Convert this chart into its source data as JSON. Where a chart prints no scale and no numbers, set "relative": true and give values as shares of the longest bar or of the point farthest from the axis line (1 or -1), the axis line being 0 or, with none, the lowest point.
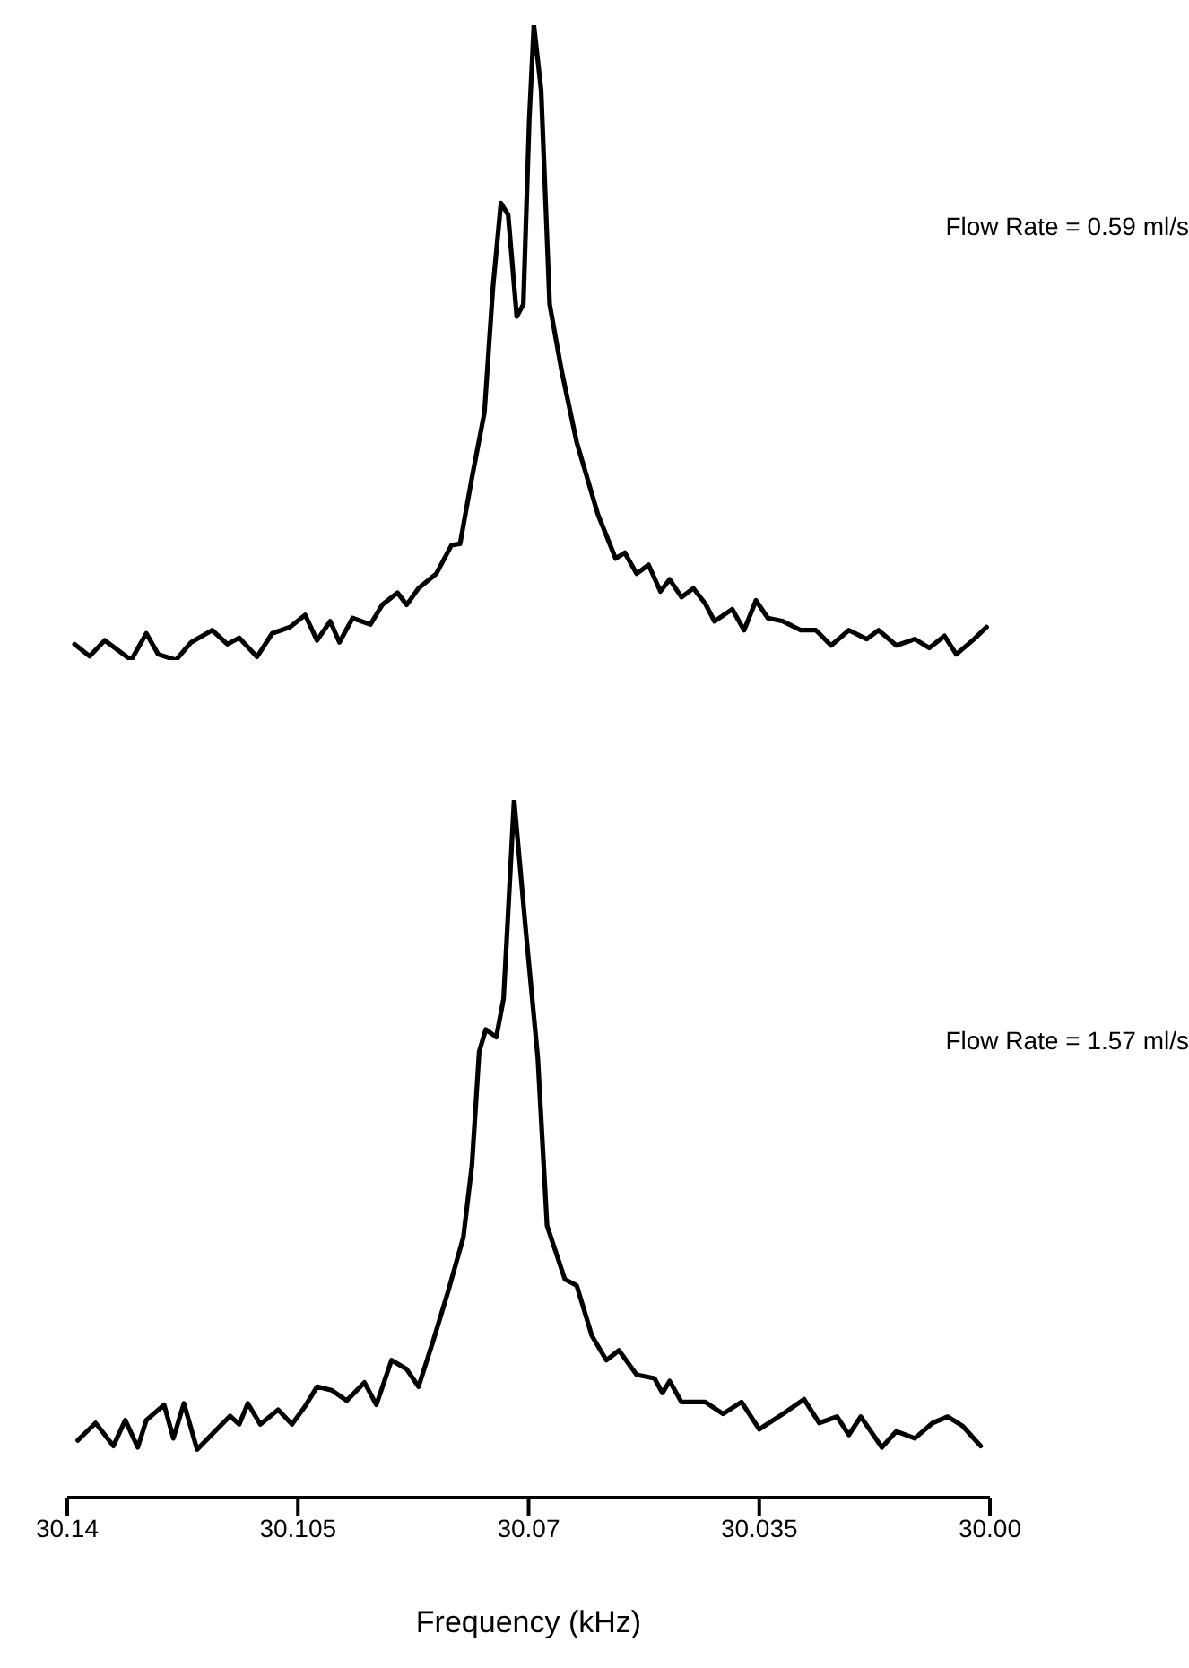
{
  "chart_data": [
    {
      "type": "line",
      "relative": true,
      "marker": "none",
      "xlim": [
        30.14,
        30.0
      ],
      "tick_labels": false,
      "annotations": [
        "Flow Rate = 0.59 ml/s"
      ],
      "series": [
        {
          "color": "#000000",
          "x": [
            30.1389,
            30.1366,
            30.1343,
            30.1303,
            30.128,
            30.1262,
            30.1235,
            30.1212,
            30.118,
            30.1157,
            30.1139,
            30.1112,
            30.1089,
            30.1062,
            30.1039,
            30.1021,
            30.1001,
            30.0987,
            30.0967,
            30.094,
            30.0922,
            30.0899,
            30.0885,
            30.0867,
            30.084,
            30.0817,
            30.0804,
            30.0786,
            30.0767,
            30.0754,
            30.0742,
            30.0731,
            30.0718,
            30.0708,
            30.0699,
            30.0692,
            30.0681,
            30.0668,
            30.065,
            30.0627,
            30.0595,
            30.0568,
            30.0554,
            30.0536,
            30.0518,
            30.05,
            30.0486,
            30.0468,
            30.045,
            30.0432,
            30.0418,
            30.0391,
            30.0373,
            30.0355,
            30.0337,
            30.0314,
            30.0287,
            30.0264,
            30.0241,
            30.0214,
            30.0187,
            30.0169,
            30.0142,
            30.0114,
            30.0092,
            30.0069,
            30.0051,
            30.0024,
            30.0005
          ],
          "values": [
            0.025,
            0.006,
            0.031,
            0,
            0.042,
            0.009,
            0,
            0.028,
            0.047,
            0.025,
            0.035,
            0.005,
            0.042,
            0.052,
            0.071,
            0.031,
            0.061,
            0.028,
            0.066,
            0.056,
            0.087,
            0.106,
            0.087,
            0.113,
            0.136,
            0.181,
            0.183,
            0.287,
            0.39,
            0.588,
            0.72,
            0.701,
            0.541,
            0.56,
            0.851,
            1,
            0.898,
            0.56,
            0.456,
            0.343,
            0.23,
            0.16,
            0.169,
            0.136,
            0.15,
            0.108,
            0.127,
            0.099,
            0.113,
            0.089,
            0.061,
            0.08,
            0.047,
            0.094,
            0.066,
            0.061,
            0.047,
            0.047,
            0.023,
            0.047,
            0.033,
            0.047,
            0.023,
            0.033,
            0.019,
            0.038,
            0.009,
            0.033,
            0.052
          ]
        }
      ]
    },
    {
      "type": "line",
      "relative": true,
      "marker": "none",
      "xlim": [
        30.14,
        30.0
      ],
      "xticks": [
        30.14,
        30.105,
        30.07,
        30.035,
        {
          "value": 30.0,
          "label": "30.00"
        }
      ],
      "tick_labels": "x",
      "xlabel": "Frequency (kHz)",
      "annotations": [
        "Flow Rate = 1.57 ml/s"
      ],
      "series": [
        {
          "color": "#000000",
          "x": [
            30.1384,
            30.1357,
            30.133,
            30.1312,
            30.1293,
            30.128,
            30.1253,
            30.1239,
            30.1223,
            30.1203,
            30.1176,
            30.1153,
            30.1139,
            30.1126,
            30.1107,
            30.108,
            30.1059,
            30.1039,
            30.1021,
            30.0999,
            30.0976,
            30.0949,
            30.0931,
            30.0908,
            30.0885,
            30.0867,
            30.0844,
            30.0822,
            30.0799,
            30.0786,
            30.0775,
            30.0765,
            30.0749,
            30.0738,
            30.0722,
            30.0704,
            30.0686,
            30.0672,
            30.0645,
            30.0627,
            30.0604,
            30.0582,
            30.0563,
            30.0536,
            30.0509,
            30.0497,
            30.0486,
            30.0468,
            30.0432,
            30.0405,
            30.0377,
            30.035,
            30.0314,
            30.0282,
            30.0259,
            30.0232,
            30.0214,
            30.0196,
            30.0164,
            30.0142,
            30.0114,
            30.0087,
            30.0064,
            30.0042,
            30.0014
          ],
          "values": [
            0.082,
            0.107,
            0.074,
            0.111,
            0.072,
            0.111,
            0.133,
            0.085,
            0.135,
            0.069,
            0.095,
            0.117,
            0.105,
            0.135,
            0.105,
            0.126,
            0.105,
            0.131,
            0.159,
            0.154,
            0.139,
            0.165,
            0.133,
            0.197,
            0.184,
            0.159,
            0.227,
            0.296,
            0.373,
            0.476,
            0.639,
            0.671,
            0.66,
            0.715,
            1,
            0.81,
            0.63,
            0.39,
            0.313,
            0.304,
            0.232,
            0.197,
            0.211,
            0.176,
            0.171,
            0.15,
            0.167,
            0.137,
            0.137,
            0.12,
            0.137,
            0.098,
            0.12,
            0.141,
            0.107,
            0.116,
            0.09,
            0.116,
            0.072,
            0.095,
            0.085,
            0.107,
            0.116,
            0.103,
            0.074
          ]
        }
      ]
    }
  ]
}
